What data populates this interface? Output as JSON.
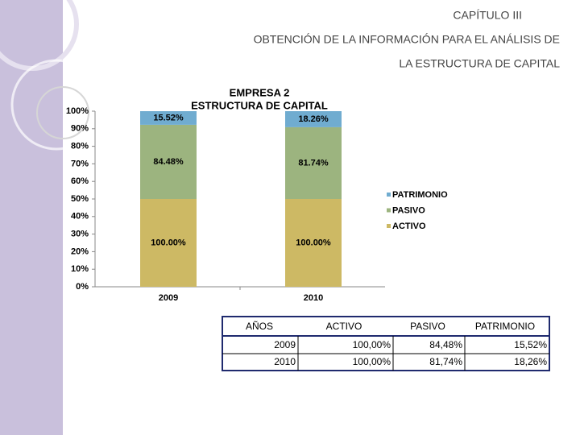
{
  "header": {
    "chapter": "CAPÍTULO III",
    "title_line1": "OBTENCIÓN DE LA INFORMACIÓN PARA EL ANÁLISIS DE",
    "title_line2": "LA ESTRUCTURA DE CAPITAL"
  },
  "chart_data": {
    "type": "stacked_percent_bar",
    "title": "EMPRESA 2",
    "subtitle": "ESTRUCTURA DE CAPITAL",
    "categories": [
      "2009",
      "2010"
    ],
    "series": [
      {
        "name": "ACTIVO",
        "color": "#cdb964",
        "values": [
          100,
          100
        ],
        "value_labels": [
          "100.00%",
          "100.00%"
        ]
      },
      {
        "name": "PASIVO",
        "color": "#9cb47f",
        "values": [
          84.48,
          81.74
        ],
        "value_labels": [
          "84.48%",
          "81.74%"
        ]
      },
      {
        "name": "PATRIMONIO",
        "color": "#70acd0",
        "values": [
          15.52,
          18.26
        ],
        "value_labels": [
          "15.52%",
          "18.26%"
        ]
      }
    ],
    "ylim": [
      0,
      100
    ],
    "yticks": [
      {
        "value": 0,
        "label": "0%"
      },
      {
        "value": 10,
        "label": "10%"
      },
      {
        "value": 20,
        "label": "20%"
      },
      {
        "value": 30,
        "label": "30%"
      },
      {
        "value": 40,
        "label": "40%"
      },
      {
        "value": 50,
        "label": "50%"
      },
      {
        "value": 60,
        "label": "60%"
      },
      {
        "value": 70,
        "label": "70%"
      },
      {
        "value": 80,
        "label": "80%"
      },
      {
        "value": 90,
        "label": "90%"
      },
      {
        "value": 100,
        "label": "100%"
      }
    ],
    "legend": "right"
  },
  "table": {
    "header": [
      "AÑOS",
      "ACTIVO",
      "PASIVO",
      "PATRIMONIO"
    ],
    "rows": [
      [
        "2009",
        "100,00%",
        "84,48%",
        "15,52%"
      ],
      [
        "2010",
        "100,00%",
        "81,74%",
        "18,26%"
      ]
    ]
  }
}
